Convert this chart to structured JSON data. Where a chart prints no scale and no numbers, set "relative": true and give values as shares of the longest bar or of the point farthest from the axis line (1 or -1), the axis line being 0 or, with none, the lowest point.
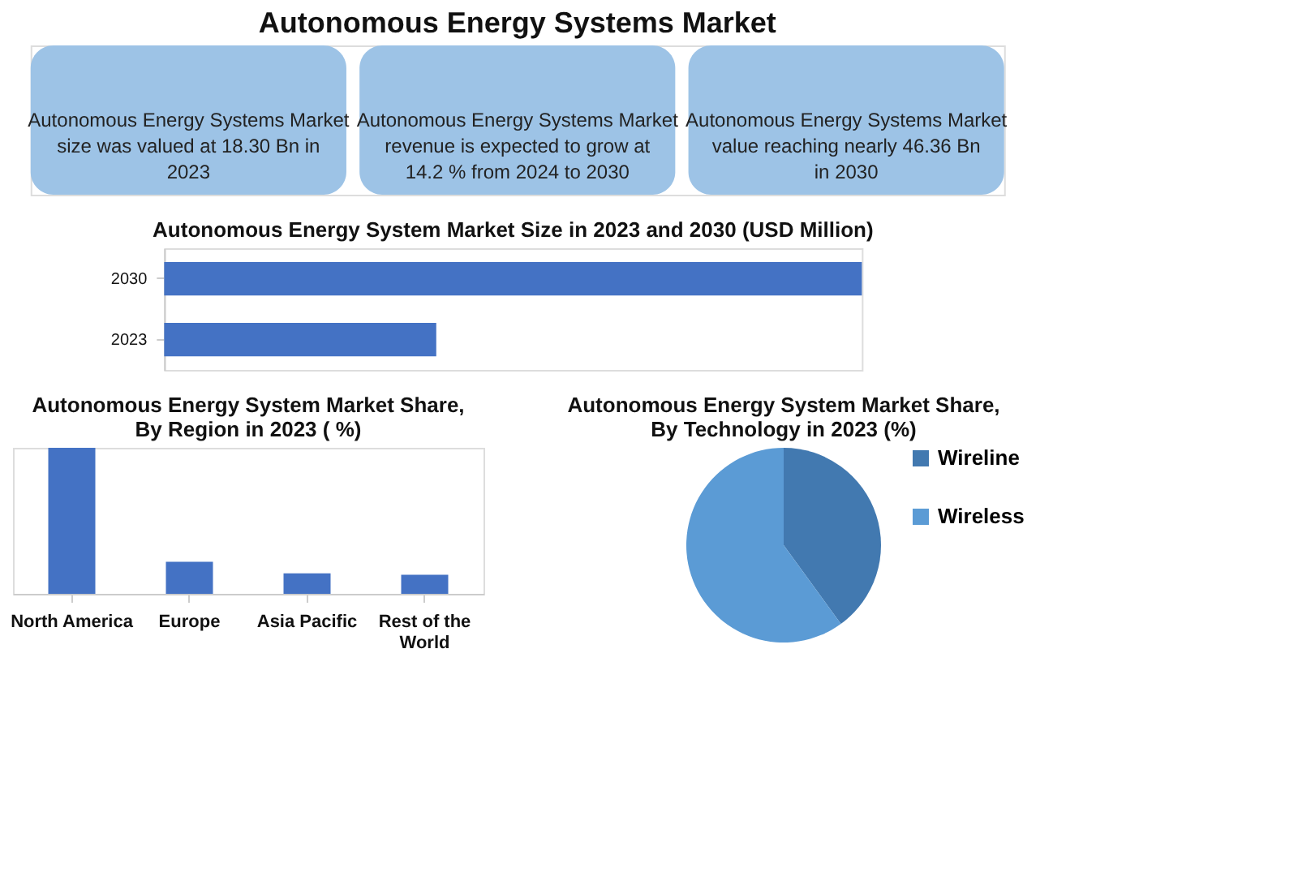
{
  "chart_data": [
    {
      "type": "other",
      "title": "Autonomous Energy Systems Market",
      "annotations": [
        "Autonomous Energy Systems Market size was valued at 18.30 Bn in 2023",
        "Autonomous Energy Systems Market revenue is expected to grow at 14.2 % from 2024 to 2030",
        "Autonomous Energy Systems Market value reaching nearly 46.36 Bn in 2030"
      ],
      "color": "#9dc3e6"
    },
    {
      "type": "bar",
      "orientation": "horizontal",
      "relative": true,
      "title": "Autonomous Energy System Market Size in 2023 and 2030 (USD Million)",
      "categories": [
        "2030",
        "2023"
      ],
      "values": [
        1,
        0.39
      ],
      "color": "#4472c4"
    },
    {
      "type": "bar",
      "relative": true,
      "title": "Autonomous Energy System Market Share, By Region in 2023 ( %)",
      "categories": [
        "North America",
        "Europe",
        "Asia Pacific",
        "Rest of the World"
      ],
      "values": [
        1,
        0.22,
        0.14,
        0.13
      ],
      "color": "#4472c4"
    },
    {
      "type": "pie",
      "title": "Autonomous Energy System Market Share, By Technology in 2023 (%)",
      "categories": [
        "Wireline",
        "Wireless"
      ],
      "values": [
        40,
        60
      ],
      "colors": [
        "#4279b0",
        "#5b9bd5"
      ],
      "legend": "right"
    }
  ]
}
